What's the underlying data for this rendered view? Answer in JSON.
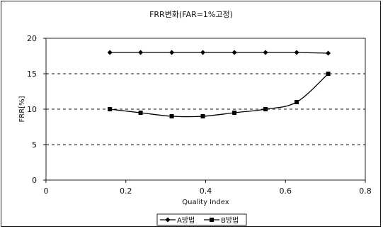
{
  "chart_data": {
    "type": "line",
    "title": "FRR변화(FAR=1%고정)",
    "xlabel": "Quality Index",
    "ylabel": "FRR[%]",
    "xlim": [
      0,
      0.8
    ],
    "ylim": [
      0,
      20
    ],
    "x_ticks": [
      "0",
      "0.2",
      "0.4",
      "0.6",
      "0.8"
    ],
    "y_ticks": [
      "0",
      "5",
      "10",
      "15",
      "20"
    ],
    "grid": "horizontal dashed",
    "legend_position": "bottom",
    "series": [
      {
        "name": "A방법",
        "marker": "diamond",
        "color": "#000000",
        "x": [
          0.16,
          0.237,
          0.315,
          0.393,
          0.472,
          0.55,
          0.628,
          0.707
        ],
        "y": [
          18,
          18,
          18,
          18,
          18,
          18,
          18,
          17.9
        ]
      },
      {
        "name": "B방법",
        "marker": "square",
        "color": "#000000",
        "x": [
          0.16,
          0.237,
          0.315,
          0.393,
          0.472,
          0.55,
          0.628,
          0.707
        ],
        "y": [
          10,
          9.5,
          9,
          9,
          9.5,
          10,
          11,
          15
        ]
      }
    ]
  }
}
